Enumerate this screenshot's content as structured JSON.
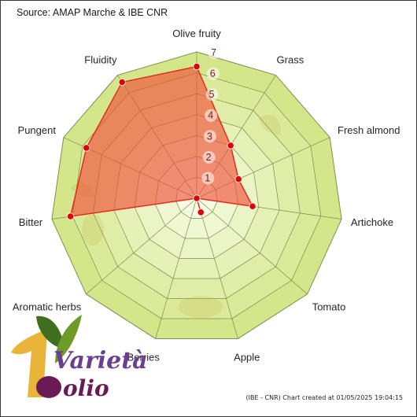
{
  "source_text": "Source: AMAP Marche & IBE CNR",
  "footer_text": "(IBE - CNR) Chart created at 01/05/2025 19:04:15",
  "logo": {
    "word1": "Varietà",
    "word2": "olio"
  },
  "colors": {
    "band_light": "#f6fbe2",
    "band_dark": "#d4e68a",
    "grid_line": "#7c8f4e",
    "series_fill": "#f04a36",
    "series_line": "#e8221b",
    "marker": "#e00000",
    "watermark": "#c9b04a"
  },
  "chart_data": {
    "type": "radar",
    "title": "",
    "axes": [
      "Olive fruity",
      "Grass",
      "Fresh almond",
      "Artichoke",
      "Tomato",
      "Apple",
      "Berries",
      "Aromatic herbs",
      "Bitter",
      "Pungent",
      "Fluidity"
    ],
    "rlim": [
      0,
      7
    ],
    "ticks": [
      "1",
      "2",
      "3",
      "4",
      "5",
      "6",
      "7"
    ],
    "grid": true,
    "legend": "none",
    "series": [
      {
        "values": [
          6.3,
          3.0,
          2.2,
          2.7,
          0.0,
          0.7,
          0.0,
          0.0,
          6.1,
          5.8,
          6.6
        ]
      }
    ]
  }
}
